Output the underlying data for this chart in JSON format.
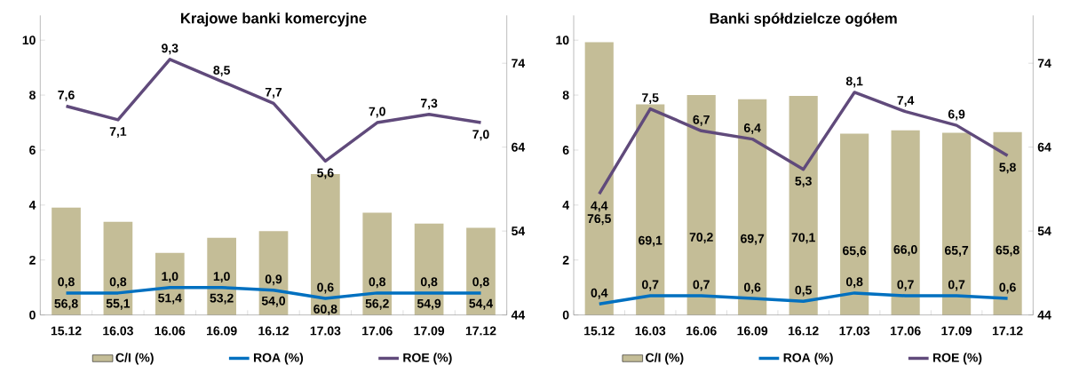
{
  "chart_data": [
    {
      "type": "bar",
      "title": "Krajowe banki komercyjne",
      "categories": [
        "15.12",
        "16.03",
        "16.06",
        "16.09",
        "16.12",
        "17.03",
        "17.06",
        "17.09",
        "17.12"
      ],
      "series": [
        {
          "name": "C/I (%)",
          "axis": "y2",
          "color": "#c4bd97",
          "values": [
            56.8,
            55.1,
            51.4,
            53.2,
            54.0,
            60.8,
            56.2,
            54.9,
            54.4
          ],
          "value_labels": [
            "56,8",
            "55,1",
            "51,4",
            "53,2",
            "54,0",
            "60,8",
            "56,2",
            "54,9",
            "54,4"
          ]
        },
        {
          "name": "ROA (%)",
          "type": "line",
          "color": "#0070c0",
          "values": [
            0.8,
            0.8,
            1.0,
            1.0,
            0.9,
            0.6,
            0.8,
            0.8,
            0.8
          ],
          "value_labels": [
            "0,8",
            "0,8",
            "1,0",
            "1,0",
            "0,9",
            "0,6",
            "0,8",
            "0,8",
            "0,8"
          ]
        },
        {
          "name": "ROE (%)",
          "type": "line",
          "color": "#604a7b",
          "values": [
            7.6,
            7.1,
            9.3,
            8.5,
            7.7,
            5.6,
            7.0,
            7.3,
            7.0
          ],
          "value_labels": [
            "7,6",
            "7,1",
            "9,3",
            "8,5",
            "7,7",
            "5,6",
            "7,0",
            "7,3",
            "7,0"
          ]
        }
      ],
      "ylim": [
        0,
        10.9
      ],
      "yticks": [
        0,
        2,
        4,
        6,
        8,
        10
      ],
      "y2lim": [
        44,
        79.7
      ],
      "y2ticks": [
        44,
        54,
        64,
        74
      ],
      "legend": "bottom"
    },
    {
      "type": "bar",
      "title": "Banki spółdzielcze ogółem",
      "categories": [
        "15.12",
        "16.03",
        "16.06",
        "16.09",
        "16.12",
        "17.03",
        "17.06",
        "17.09",
        "17.12"
      ],
      "series": [
        {
          "name": "C/I (%)",
          "axis": "y2",
          "color": "#c4bd97",
          "values": [
            76.5,
            69.1,
            70.2,
            69.7,
            70.1,
            65.6,
            66.0,
            65.7,
            65.8
          ],
          "value_labels": [
            "76,5",
            "69,1",
            "70,2",
            "69,7",
            "70,1",
            "65,6",
            "66,0",
            "65,7",
            "65,8"
          ]
        },
        {
          "name": "ROA (%)",
          "type": "line",
          "color": "#0070c0",
          "values": [
            0.4,
            0.7,
            0.7,
            0.6,
            0.5,
            0.8,
            0.7,
            0.7,
            0.6
          ],
          "value_labels": [
            "0,4",
            "0,7",
            "0,7",
            "0,6",
            "0,5",
            "0,8",
            "0,7",
            "0,7",
            "0,6"
          ]
        },
        {
          "name": "ROE (%)",
          "type": "line",
          "color": "#604a7b",
          "values": [
            4.4,
            7.5,
            6.7,
            6.4,
            5.3,
            8.1,
            7.4,
            6.9,
            5.8
          ],
          "value_labels": [
            "4,4",
            "7,5",
            "6,7",
            "6,4",
            "5,3",
            "8,1",
            "7,4",
            "6,9",
            "5,8"
          ]
        }
      ],
      "ylim": [
        0,
        10.9
      ],
      "yticks": [
        0,
        2,
        4,
        6,
        8,
        10
      ],
      "y2lim": [
        44,
        79.7
      ],
      "y2ticks": [
        44,
        54,
        64,
        74
      ],
      "legend": "bottom"
    }
  ]
}
